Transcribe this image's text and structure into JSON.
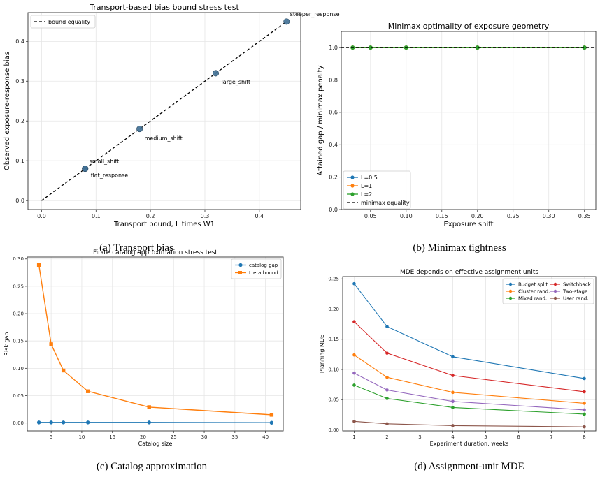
{
  "captions": {
    "a": "(a) Transport bias",
    "b": "(b) Minimax tightness",
    "c": "(c) Catalog approximation",
    "d": "(d) Assignment-unit MDE"
  },
  "chart_data": [
    {
      "type": "scatter",
      "title": "Transport-based bias bound stress test",
      "xlabel": "Transport bound, L times W1",
      "ylabel": "Observed exposure-response bias",
      "xlim": [
        -0.025,
        0.476
      ],
      "ylim": [
        -0.0225,
        0.4725
      ],
      "xticks": [
        "0.0",
        "0.1",
        "0.2",
        "0.3",
        "0.4"
      ],
      "yticks": [
        "0.0",
        "0.1",
        "0.2",
        "0.3",
        "0.4"
      ],
      "grid": true,
      "legend_position": "top-left",
      "points": [
        {
          "label": "small_shift",
          "x": 0.08,
          "y": 0.08
        },
        {
          "label": "flat_response",
          "x": 0.08,
          "y": 0.08
        },
        {
          "label": "medium_shift",
          "x": 0.18,
          "y": 0.18
        },
        {
          "label": "large_shift",
          "x": 0.32,
          "y": 0.32
        },
        {
          "label": "steeper_response",
          "x": 0.45,
          "y": 0.45
        }
      ],
      "reference_line": {
        "name": "bound equality",
        "x": [
          0,
          0.45
        ],
        "y": [
          0,
          0.45
        ]
      },
      "colors": {
        "points": "#3f6f93",
        "line": "#000000"
      }
    },
    {
      "type": "line",
      "title": "Minimax optimality of exposure geometry",
      "xlabel": "Exposure shift",
      "ylabel": "Attained gap / minimax penalty",
      "xlim": [
        0.009,
        0.366
      ],
      "ylim": [
        0.0,
        1.1
      ],
      "xticks": [
        "0.05",
        "0.10",
        "0.15",
        "0.20",
        "0.25",
        "0.30",
        "0.35"
      ],
      "yticks": [
        "0.0",
        "0.2",
        "0.4",
        "0.6",
        "0.8",
        "1.0"
      ],
      "grid": true,
      "legend_position": "bottom-left",
      "x": [
        0.025,
        0.05,
        0.1,
        0.2,
        0.35
      ],
      "series": [
        {
          "name": "L=0.5",
          "values": [
            1,
            1,
            1,
            1,
            1
          ],
          "color": "#1f77b4"
        },
        {
          "name": "L=1",
          "values": [
            1,
            1,
            1,
            1,
            1
          ],
          "color": "#ff7f0e"
        },
        {
          "name": "L=2",
          "values": [
            1,
            1,
            1,
            1,
            1
          ],
          "color": "#2ca02c"
        }
      ],
      "reference_line": {
        "name": "minimax equality",
        "y": 1.0
      }
    },
    {
      "type": "line",
      "title": "Finite catalog approximation stress test",
      "xlabel": "Catalog size",
      "ylabel": "Risk gap",
      "xlim": [
        1.1,
        42.9
      ],
      "ylim": [
        -0.0145,
        0.3035
      ],
      "xticks": [
        "5",
        "10",
        "15",
        "20",
        "25",
        "30",
        "35",
        "40"
      ],
      "yticks": [
        "0.00",
        "0.05",
        "0.10",
        "0.15",
        "0.20",
        "0.25",
        "0.30"
      ],
      "grid": true,
      "legend_position": "top-right",
      "x": [
        3,
        5,
        7,
        11,
        21,
        41
      ],
      "series": [
        {
          "name": "catalog gap",
          "values": [
            0.001,
            0.001,
            0.001,
            0.001,
            0.001,
            0.0005
          ],
          "color": "#1f77b4",
          "marker": "circle"
        },
        {
          "name": "L eta bound",
          "values": [
            0.289,
            0.144,
            0.096,
            0.058,
            0.029,
            0.015
          ],
          "color": "#ff7f0e",
          "marker": "square"
        }
      ]
    },
    {
      "type": "line",
      "title": "MDE depends on effective assignment units",
      "xlabel": "Experiment duration, weeks",
      "ylabel": "Planning MDE",
      "xlim": [
        0.65,
        8.35
      ],
      "ylim": [
        -0.0018,
        0.2538
      ],
      "xticks": [
        "1",
        "2",
        "3",
        "4",
        "5",
        "6",
        "7",
        "8"
      ],
      "yticks": [
        "0.00",
        "0.05",
        "0.10",
        "0.15",
        "0.20",
        "0.25"
      ],
      "grid": true,
      "legend_position": "top-right",
      "x": [
        1,
        2,
        4,
        8
      ],
      "series": [
        {
          "name": "Budget split",
          "values": [
            0.242,
            0.171,
            0.121,
            0.085
          ],
          "color": "#1f77b4"
        },
        {
          "name": "Cluster rand.",
          "values": [
            0.124,
            0.087,
            0.062,
            0.044
          ],
          "color": "#ff7f0e"
        },
        {
          "name": "Mixed rand.",
          "values": [
            0.074,
            0.052,
            0.037,
            0.026
          ],
          "color": "#2ca02c"
        },
        {
          "name": "Switchback",
          "values": [
            0.179,
            0.127,
            0.09,
            0.063
          ],
          "color": "#d62728"
        },
        {
          "name": "Two-stage",
          "values": [
            0.094,
            0.066,
            0.047,
            0.033
          ],
          "color": "#9467bd"
        },
        {
          "name": "User rand.",
          "values": [
            0.014,
            0.01,
            0.007,
            0.005
          ],
          "color": "#8c564b"
        }
      ]
    }
  ]
}
